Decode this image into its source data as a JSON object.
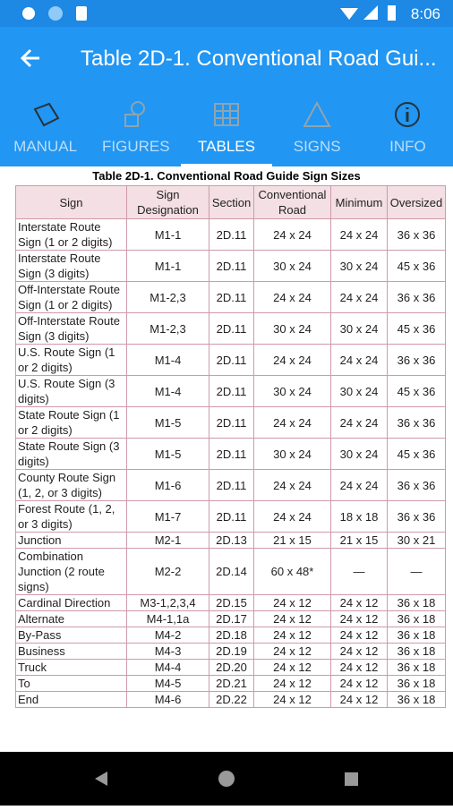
{
  "status_bar": {
    "time": "8:06"
  },
  "app_bar": {
    "title": "Table 2D-1.  Conventional Road Gui..."
  },
  "tabs": [
    "MANUAL",
    "FIGURES",
    "TABLES",
    "SIGNS",
    "INFO"
  ],
  "table": {
    "title": "Table 2D-1. Conventional Road Guide Sign Sizes",
    "header": [
      "Sign",
      "Sign Designation",
      "Section",
      "Conventional Road",
      "Minimum",
      "Oversized"
    ],
    "rows": [
      [
        "Interstate Route Sign (1 or 2 digits)",
        "M1-1",
        "2D.11",
        "24 x 24",
        "24 x 24",
        "36 x 36"
      ],
      [
        "Interstate Route Sign (3 digits)",
        "M1-1",
        "2D.11",
        "30 x 24",
        "30 x 24",
        "45 x 36"
      ],
      [
        "Off-Interstate Route Sign (1 or 2 digits)",
        "M1-2,3",
        "2D.11",
        "24 x 24",
        "24 x 24",
        "36 x 36"
      ],
      [
        "Off-Interstate Route Sign (3 digits)",
        "M1-2,3",
        "2D.11",
        "30 x 24",
        "30 x 24",
        "45 x 36"
      ],
      [
        "U.S. Route Sign (1 or 2 digits)",
        "M1-4",
        "2D.11",
        "24 x 24",
        "24 x 24",
        "36 x 36"
      ],
      [
        "U.S. Route Sign (3 digits)",
        "M1-4",
        "2D.11",
        "30 x 24",
        "30 x 24",
        "45 x 36"
      ],
      [
        "State Route Sign (1 or 2 digits)",
        "M1-5",
        "2D.11",
        "24 x 24",
        "24 x 24",
        "36 x 36"
      ],
      [
        "State Route Sign (3 digits)",
        "M1-5",
        "2D.11",
        "30 x 24",
        "30 x 24",
        "45 x 36"
      ],
      [
        "County Route Sign (1, 2, or 3 digits)",
        "M1-6",
        "2D.11",
        "24 x 24",
        "24 x 24",
        "36 x 36"
      ],
      [
        "Forest Route (1, 2, or 3 digits)",
        "M1-7",
        "2D.11",
        "24 x 24",
        "18 x 18",
        "36 x 36"
      ],
      [
        "Junction",
        "M2-1",
        "2D.13",
        "21 x 15",
        "21 x 15",
        "30 x 21"
      ],
      [
        "Combination Junction (2 route signs)",
        "M2-2",
        "2D.14",
        "60 x 48*",
        "—",
        "—"
      ],
      [
        "Cardinal Direction",
        "M3-1,2,3,4",
        "2D.15",
        "24 x 12",
        "24 x 12",
        "36 x 18"
      ],
      [
        "Alternate",
        "M4-1,1a",
        "2D.17",
        "24 x 12",
        "24 x 12",
        "36 x 18"
      ],
      [
        "By-Pass",
        "M4-2",
        "2D.18",
        "24 x 12",
        "24 x 12",
        "36 x 18"
      ],
      [
        "Business",
        "M4-3",
        "2D.19",
        "24 x 12",
        "24 x 12",
        "36 x 18"
      ],
      [
        "Truck",
        "M4-4",
        "2D.20",
        "24 x 12",
        "24 x 12",
        "36 x 18"
      ],
      [
        "To",
        "M4-5",
        "2D.21",
        "24 x 12",
        "24 x 12",
        "36 x 18"
      ],
      [
        "End",
        "M4-6",
        "2D.22",
        "24 x 12",
        "24 x 12",
        "36 x 18"
      ]
    ]
  }
}
